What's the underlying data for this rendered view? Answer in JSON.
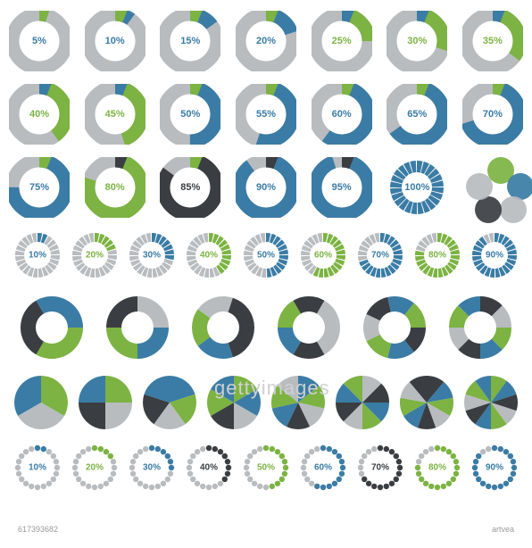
{
  "colors": {
    "green": "#7cb342",
    "blue": "#3a7ca5",
    "gray": "#b8bcbf",
    "dark": "#3a3e42",
    "white": "#ffffff"
  },
  "font": {
    "label_size": 11,
    "small_label_size": 10,
    "family": "Arial"
  },
  "donuts": {
    "outer_radius": 34,
    "stroke": 18,
    "inner_fill": "#ffffff",
    "items": [
      {
        "pct": 5,
        "fill": "#3a7ca5",
        "accent": "#7cb342",
        "label": "5%",
        "text_color": "#3a7ca5"
      },
      {
        "pct": 10,
        "fill": "#3a7ca5",
        "accent": "#7cb342",
        "label": "10%",
        "text_color": "#3a7ca5"
      },
      {
        "pct": 15,
        "fill": "#3a7ca5",
        "accent": "#7cb342",
        "label": "15%",
        "text_color": "#3a7ca5"
      },
      {
        "pct": 20,
        "fill": "#3a7ca5",
        "accent": "#7cb342",
        "label": "20%",
        "text_color": "#3a7ca5"
      },
      {
        "pct": 25,
        "fill": "#7cb342",
        "accent": "#3a7ca5",
        "label": "25%",
        "text_color": "#7cb342"
      },
      {
        "pct": 30,
        "fill": "#7cb342",
        "accent": "#3a7ca5",
        "label": "30%",
        "text_color": "#7cb342"
      },
      {
        "pct": 35,
        "fill": "#7cb342",
        "accent": "#3a7ca5",
        "label": "35%",
        "text_color": "#7cb342"
      },
      {
        "pct": 40,
        "fill": "#7cb342",
        "accent": "#3a7ca5",
        "label": "40%",
        "text_color": "#7cb342"
      },
      {
        "pct": 45,
        "fill": "#7cb342",
        "accent": "#3a7ca5",
        "label": "45%",
        "text_color": "#7cb342"
      },
      {
        "pct": 50,
        "fill": "#3a7ca5",
        "accent": "#7cb342",
        "label": "50%",
        "text_color": "#3a7ca5"
      },
      {
        "pct": 55,
        "fill": "#3a7ca5",
        "accent": "#7cb342",
        "label": "55%",
        "text_color": "#3a7ca5"
      },
      {
        "pct": 60,
        "fill": "#3a7ca5",
        "accent": "#7cb342",
        "label": "60%",
        "text_color": "#3a7ca5"
      },
      {
        "pct": 65,
        "fill": "#3a7ca5",
        "accent": "#7cb342",
        "label": "65%",
        "text_color": "#3a7ca5"
      },
      {
        "pct": 70,
        "fill": "#3a7ca5",
        "accent": "#7cb342",
        "label": "70%",
        "text_color": "#3a7ca5"
      },
      {
        "pct": 75,
        "fill": "#3a7ca5",
        "accent": "#7cb342",
        "label": "75%",
        "text_color": "#3a7ca5"
      },
      {
        "pct": 80,
        "fill": "#7cb342",
        "accent": "#3a3e42",
        "label": "80%",
        "text_color": "#7cb342"
      },
      {
        "pct": 85,
        "fill": "#3a3e42",
        "accent": "#7cb342",
        "label": "85%",
        "text_color": "#3a3e42"
      },
      {
        "pct": 90,
        "fill": "#3a7ca5",
        "accent": "#3a3e42",
        "label": "90%",
        "text_color": "#3a7ca5"
      },
      {
        "pct": 95,
        "fill": "#3a7ca5",
        "accent": "#3a3e42",
        "label": "95%",
        "text_color": "#3a7ca5"
      }
    ]
  },
  "seg100": {
    "segments": 24,
    "fill": "#3a7ca5",
    "label": "100%",
    "text_color": "#3a7ca5"
  },
  "overlap_circles": {
    "colors": [
      "#7cb342",
      "#3a7ca5",
      "#b8bcbf",
      "#3a3e42",
      "#b8bcbf"
    ]
  },
  "segmented_row": {
    "segments": 24,
    "bg": "#b8bcbf",
    "items": [
      {
        "pct": 10,
        "fill": "#3a7ca5",
        "label": "10%"
      },
      {
        "pct": 20,
        "fill": "#7cb342",
        "label": "20%"
      },
      {
        "pct": 30,
        "fill": "#3a7ca5",
        "label": "30%"
      },
      {
        "pct": 40,
        "fill": "#7cb342",
        "label": "40%"
      },
      {
        "pct": 50,
        "fill": "#3a7ca5",
        "label": "50%"
      },
      {
        "pct": 60,
        "fill": "#7cb342",
        "label": "60%"
      },
      {
        "pct": 70,
        "fill": "#3a7ca5",
        "label": "70%"
      },
      {
        "pct": 80,
        "fill": "#7cb342",
        "label": "80%"
      },
      {
        "pct": 90,
        "fill": "#3a7ca5",
        "label": "90%"
      }
    ]
  },
  "arrow_rings": [
    {
      "segs": 3,
      "colors": [
        "#7cb342",
        "#3a3e42",
        "#3a7ca5"
      ]
    },
    {
      "segs": 4,
      "colors": [
        "#3a7ca5",
        "#7cb342",
        "#3a3e42",
        "#b8bcbf"
      ]
    },
    {
      "segs": 5,
      "colors": [
        "#3a3e42",
        "#3a7ca5",
        "#7cb342",
        "#b8bcbf",
        "#3a3e42"
      ]
    },
    {
      "segs": 6,
      "colors": [
        "#b8bcbf",
        "#3a3e42",
        "#3a7ca5",
        "#7cb342",
        "#3a3e42",
        "#b8bcbf"
      ]
    },
    {
      "segs": 7,
      "colors": [
        "#3a3e42",
        "#3a7ca5",
        "#7cb342",
        "#b8bcbf",
        "#3a3e42",
        "#3a7ca5",
        "#7cb342"
      ]
    },
    {
      "segs": 8,
      "colors": [
        "#7cb342",
        "#3a7ca5",
        "#3a3e42",
        "#b8bcbf",
        "#7cb342",
        "#3a7ca5",
        "#3a3e42",
        "#b8bcbf"
      ]
    }
  ],
  "pies": [
    {
      "slices": 3,
      "colors": [
        "#7cb342",
        "#b8bcbf",
        "#3a7ca5"
      ]
    },
    {
      "slices": 4,
      "colors": [
        "#7cb342",
        "#b8bcbf",
        "#3a3e42",
        "#3a7ca5"
      ]
    },
    {
      "slices": 5,
      "colors": [
        "#3a7ca5",
        "#7cb342",
        "#b8bcbf",
        "#3a3e42",
        "#3a7ca5"
      ]
    },
    {
      "slices": 6,
      "colors": [
        "#7cb342",
        "#3a7ca5",
        "#b8bcbf",
        "#3a3e42",
        "#7cb342",
        "#3a7ca5"
      ]
    },
    {
      "slices": 7,
      "colors": [
        "#3a7ca5",
        "#7cb342",
        "#b8bcbf",
        "#3a3e42",
        "#3a7ca5",
        "#7cb342",
        "#b8bcbf"
      ]
    },
    {
      "slices": 8,
      "colors": [
        "#b8bcbf",
        "#3a3e42",
        "#3a7ca5",
        "#7cb342",
        "#b8bcbf",
        "#3a3e42",
        "#3a7ca5",
        "#7cb342"
      ]
    },
    {
      "slices": 9,
      "colors": [
        "#3a3e42",
        "#3a7ca5",
        "#7cb342",
        "#b8bcbf",
        "#3a3e42",
        "#3a7ca5",
        "#7cb342",
        "#b8bcbf",
        "#3a3e42"
      ]
    },
    {
      "slices": 10,
      "colors": [
        "#7cb342",
        "#3a7ca5",
        "#3a3e42",
        "#b8bcbf",
        "#7cb342",
        "#3a7ca5",
        "#3a3e42",
        "#b8bcbf",
        "#7cb342",
        "#3a7ca5"
      ]
    }
  ],
  "dot_rings": {
    "dots": 20,
    "items": [
      {
        "pct": 10,
        "fill": "#3a7ca5",
        "label": "10%"
      },
      {
        "pct": 20,
        "fill": "#7cb342",
        "label": "20%"
      },
      {
        "pct": 30,
        "fill": "#3a7ca5",
        "label": "30%"
      },
      {
        "pct": 40,
        "fill": "#3a3e42",
        "label": "40%"
      },
      {
        "pct": 50,
        "fill": "#7cb342",
        "label": "50%"
      },
      {
        "pct": 60,
        "fill": "#3a7ca5",
        "label": "60%"
      },
      {
        "pct": 70,
        "fill": "#3a3e42",
        "label": "70%"
      },
      {
        "pct": 80,
        "fill": "#7cb342",
        "label": "80%"
      },
      {
        "pct": 90,
        "fill": "#3a7ca5",
        "label": "90%"
      }
    ]
  },
  "watermark": {
    "brand": "gettyimages",
    "credit": "artvea",
    "id": "617393682"
  }
}
